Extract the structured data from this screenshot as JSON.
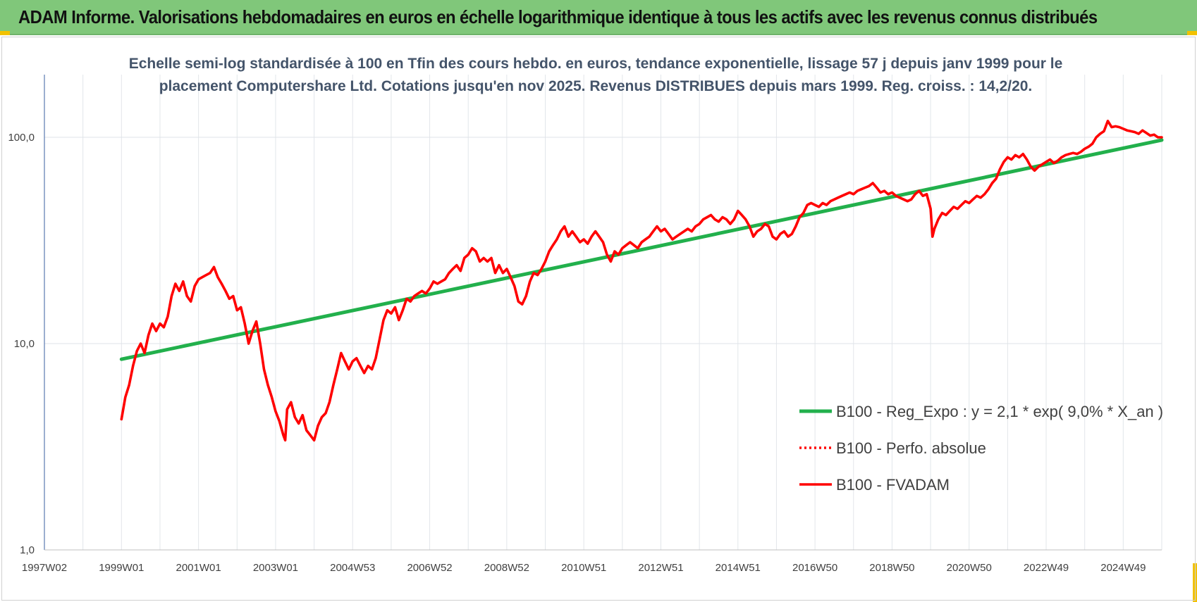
{
  "banner": {
    "title": "ADAM Informe. Valorisations hebdomadaires en euros en échelle logarithmique identique à tous les actifs avec les revenus connus distribués",
    "color": "#80c77a"
  },
  "chart_data": {
    "type": "line",
    "title_lines": [
      "Echelle semi-log standardisée à 100 en Tfin des cours hebdo. en euros, tendance exponentielle, lissage 57 j depuis janv 1999 pour le",
      "placement Computershare Ltd. Cotations jusqu'en nov 2025. Revenus DISTRIBUES depuis mars 1999. Reg. croiss. : 14,2/20."
    ],
    "y_scale": "log",
    "ylim": [
      1,
      200
    ],
    "y_ticks": [
      {
        "value": 100,
        "label": "100,0"
      },
      {
        "value": 10,
        "label": "10,0"
      },
      {
        "value": 1,
        "label": "1,0"
      }
    ],
    "x_unit": "year",
    "xlim": [
      1997.0,
      2026.0
    ],
    "x_ticks": [
      {
        "value": 1997.0,
        "label": "1997W02"
      },
      {
        "value": 1999.0,
        "label": "1999W01"
      },
      {
        "value": 2001.0,
        "label": "2001W01"
      },
      {
        "value": 2003.0,
        "label": "2003W01"
      },
      {
        "value": 2005.0,
        "label": "2004W53"
      },
      {
        "value": 2007.0,
        "label": "2006W52"
      },
      {
        "value": 2009.0,
        "label": "2008W52"
      },
      {
        "value": 2011.0,
        "label": "2010W51"
      },
      {
        "value": 2013.0,
        "label": "2012W51"
      },
      {
        "value": 2015.0,
        "label": "2014W51"
      },
      {
        "value": 2017.0,
        "label": "2016W50"
      },
      {
        "value": 2019.0,
        "label": "2018W50"
      },
      {
        "value": 2021.0,
        "label": "2020W50"
      },
      {
        "value": 2023.0,
        "label": "2022W49"
      },
      {
        "value": 2025.0,
        "label": "2024W49"
      }
    ],
    "grid": true,
    "legend_position": "right",
    "series": [
      {
        "name": "B100 - Reg_Expo : y = 2,1 * exp( 9,0% *  X_an )",
        "color": "#22b04c",
        "style": "solid",
        "points": [
          [
            1999.0,
            8.4
          ],
          [
            2026.0,
            97
          ]
        ]
      },
      {
        "name": "B100 - Perfo. absolue",
        "color": "#ff0000",
        "style": "dotted",
        "points": []
      },
      {
        "name": "B100 - FVADAM",
        "color": "#ff0000",
        "style": "solid",
        "points": [
          [
            1999.0,
            4.3
          ],
          [
            1999.1,
            5.5
          ],
          [
            1999.2,
            6.3
          ],
          [
            1999.3,
            7.8
          ],
          [
            1999.4,
            9.2
          ],
          [
            1999.5,
            10.0
          ],
          [
            1999.6,
            9.0
          ],
          [
            1999.7,
            11.0
          ],
          [
            1999.8,
            12.5
          ],
          [
            1999.9,
            11.5
          ],
          [
            2000.0,
            12.5
          ],
          [
            2000.1,
            12.0
          ],
          [
            2000.2,
            13.5
          ],
          [
            2000.3,
            17.0
          ],
          [
            2000.4,
            19.5
          ],
          [
            2000.5,
            18.0
          ],
          [
            2000.6,
            20.0
          ],
          [
            2000.7,
            17.0
          ],
          [
            2000.8,
            16.0
          ],
          [
            2000.9,
            19.0
          ],
          [
            2001.0,
            20.5
          ],
          [
            2001.1,
            21.0
          ],
          [
            2001.2,
            21.5
          ],
          [
            2001.3,
            22.0
          ],
          [
            2001.4,
            23.5
          ],
          [
            2001.5,
            21.0
          ],
          [
            2001.6,
            19.5
          ],
          [
            2001.7,
            18.0
          ],
          [
            2001.8,
            16.5
          ],
          [
            2001.9,
            17.0
          ],
          [
            2002.0,
            14.5
          ],
          [
            2002.1,
            15.0
          ],
          [
            2002.2,
            12.5
          ],
          [
            2002.3,
            10.0
          ],
          [
            2002.4,
            11.5
          ],
          [
            2002.5,
            12.8
          ],
          [
            2002.6,
            10.0
          ],
          [
            2002.7,
            7.5
          ],
          [
            2002.8,
            6.3
          ],
          [
            2002.9,
            5.5
          ],
          [
            2003.0,
            4.7
          ],
          [
            2003.1,
            4.2
          ],
          [
            2003.2,
            3.6
          ],
          [
            2003.25,
            3.4
          ],
          [
            2003.3,
            4.8
          ],
          [
            2003.4,
            5.2
          ],
          [
            2003.5,
            4.4
          ],
          [
            2003.6,
            4.1
          ],
          [
            2003.7,
            4.5
          ],
          [
            2003.8,
            3.8
          ],
          [
            2003.9,
            3.6
          ],
          [
            2004.0,
            3.4
          ],
          [
            2004.1,
            4.0
          ],
          [
            2004.2,
            4.4
          ],
          [
            2004.3,
            4.6
          ],
          [
            2004.4,
            5.2
          ],
          [
            2004.5,
            6.3
          ],
          [
            2004.6,
            7.5
          ],
          [
            2004.7,
            9.0
          ],
          [
            2004.8,
            8.2
          ],
          [
            2004.9,
            7.5
          ],
          [
            2005.0,
            8.2
          ],
          [
            2005.1,
            8.5
          ],
          [
            2005.2,
            7.8
          ],
          [
            2005.3,
            7.2
          ],
          [
            2005.4,
            7.8
          ],
          [
            2005.5,
            7.5
          ],
          [
            2005.6,
            8.5
          ],
          [
            2005.7,
            10.5
          ],
          [
            2005.8,
            13.0
          ],
          [
            2005.9,
            14.5
          ],
          [
            2006.0,
            14.0
          ],
          [
            2006.1,
            15.0
          ],
          [
            2006.2,
            13.0
          ],
          [
            2006.3,
            14.5
          ],
          [
            2006.4,
            16.5
          ],
          [
            2006.5,
            16.0
          ],
          [
            2006.6,
            17.0
          ],
          [
            2006.7,
            17.5
          ],
          [
            2006.8,
            18.0
          ],
          [
            2006.9,
            17.5
          ],
          [
            2007.0,
            18.5
          ],
          [
            2007.1,
            20.0
          ],
          [
            2007.2,
            19.5
          ],
          [
            2007.3,
            20.0
          ],
          [
            2007.4,
            20.5
          ],
          [
            2007.5,
            22.0
          ],
          [
            2007.6,
            23.0
          ],
          [
            2007.7,
            24.0
          ],
          [
            2007.8,
            22.5
          ],
          [
            2007.9,
            26.0
          ],
          [
            2008.0,
            27.0
          ],
          [
            2008.1,
            29.0
          ],
          [
            2008.2,
            28.0
          ],
          [
            2008.3,
            25.0
          ],
          [
            2008.4,
            26.0
          ],
          [
            2008.5,
            25.0
          ],
          [
            2008.6,
            26.0
          ],
          [
            2008.7,
            22.0
          ],
          [
            2008.8,
            24.0
          ],
          [
            2008.9,
            22.0
          ],
          [
            2009.0,
            23.0
          ],
          [
            2009.1,
            21.0
          ],
          [
            2009.2,
            19.0
          ],
          [
            2009.3,
            16.0
          ],
          [
            2009.4,
            15.5
          ],
          [
            2009.5,
            17.0
          ],
          [
            2009.6,
            20.0
          ],
          [
            2009.7,
            22.0
          ],
          [
            2009.8,
            21.5
          ],
          [
            2009.9,
            23.0
          ],
          [
            2010.0,
            25.0
          ],
          [
            2010.1,
            28.0
          ],
          [
            2010.2,
            30.0
          ],
          [
            2010.3,
            32.0
          ],
          [
            2010.4,
            35.0
          ],
          [
            2010.5,
            37.0
          ],
          [
            2010.6,
            33.0
          ],
          [
            2010.7,
            35.0
          ],
          [
            2010.8,
            33.0
          ],
          [
            2010.9,
            31.0
          ],
          [
            2011.0,
            32.0
          ],
          [
            2011.1,
            30.5
          ],
          [
            2011.2,
            33.0
          ],
          [
            2011.3,
            35.0
          ],
          [
            2011.4,
            33.0
          ],
          [
            2011.5,
            31.0
          ],
          [
            2011.6,
            27.0
          ],
          [
            2011.7,
            25.0
          ],
          [
            2011.8,
            28.0
          ],
          [
            2011.9,
            27.0
          ],
          [
            2012.0,
            29.0
          ],
          [
            2012.1,
            30.0
          ],
          [
            2012.2,
            31.0
          ],
          [
            2012.3,
            30.0
          ],
          [
            2012.4,
            29.0
          ],
          [
            2012.5,
            31.0
          ],
          [
            2012.6,
            32.0
          ],
          [
            2012.7,
            33.0
          ],
          [
            2012.8,
            35.0
          ],
          [
            2012.9,
            37.0
          ],
          [
            2013.0,
            35.0
          ],
          [
            2013.1,
            36.0
          ],
          [
            2013.2,
            34.0
          ],
          [
            2013.3,
            32.0
          ],
          [
            2013.4,
            33.0
          ],
          [
            2013.5,
            34.0
          ],
          [
            2013.6,
            35.0
          ],
          [
            2013.7,
            36.0
          ],
          [
            2013.8,
            35.0
          ],
          [
            2013.9,
            37.0
          ],
          [
            2014.0,
            38.0
          ],
          [
            2014.1,
            40.0
          ],
          [
            2014.2,
            41.0
          ],
          [
            2014.3,
            42.0
          ],
          [
            2014.4,
            40.0
          ],
          [
            2014.5,
            39.0
          ],
          [
            2014.6,
            41.0
          ],
          [
            2014.7,
            40.0
          ],
          [
            2014.8,
            38.0
          ],
          [
            2014.9,
            40.0
          ],
          [
            2015.0,
            44.0
          ],
          [
            2015.1,
            42.0
          ],
          [
            2015.2,
            40.0
          ],
          [
            2015.3,
            37.0
          ],
          [
            2015.4,
            33.0
          ],
          [
            2015.5,
            35.0
          ],
          [
            2015.6,
            36.0
          ],
          [
            2015.7,
            38.0
          ],
          [
            2015.8,
            37.0
          ],
          [
            2015.9,
            33.0
          ],
          [
            2016.0,
            32.0
          ],
          [
            2016.1,
            34.0
          ],
          [
            2016.2,
            35.0
          ],
          [
            2016.3,
            33.0
          ],
          [
            2016.4,
            34.0
          ],
          [
            2016.5,
            37.0
          ],
          [
            2016.6,
            41.0
          ],
          [
            2016.7,
            43.0
          ],
          [
            2016.8,
            47.0
          ],
          [
            2016.9,
            48.0
          ],
          [
            2017.0,
            47.0
          ],
          [
            2017.1,
            46.0
          ],
          [
            2017.2,
            48.0
          ],
          [
            2017.3,
            47.0
          ],
          [
            2017.4,
            49.0
          ],
          [
            2017.5,
            50.0
          ],
          [
            2017.6,
            51.0
          ],
          [
            2017.7,
            52.0
          ],
          [
            2017.8,
            53.0
          ],
          [
            2017.9,
            54.0
          ],
          [
            2018.0,
            53.0
          ],
          [
            2018.1,
            55.0
          ],
          [
            2018.2,
            56.0
          ],
          [
            2018.3,
            57.0
          ],
          [
            2018.4,
            58.0
          ],
          [
            2018.5,
            60.0
          ],
          [
            2018.6,
            57.0
          ],
          [
            2018.7,
            54.0
          ],
          [
            2018.8,
            55.0
          ],
          [
            2018.9,
            53.0
          ],
          [
            2019.0,
            54.0
          ],
          [
            2019.1,
            52.0
          ],
          [
            2019.2,
            51.0
          ],
          [
            2019.3,
            50.0
          ],
          [
            2019.4,
            49.0
          ],
          [
            2019.5,
            50.0
          ],
          [
            2019.6,
            53.0
          ],
          [
            2019.7,
            55.0
          ],
          [
            2019.8,
            52.0
          ],
          [
            2019.9,
            53.0
          ],
          [
            2020.0,
            45.0
          ],
          [
            2020.05,
            33.0
          ],
          [
            2020.1,
            36.0
          ],
          [
            2020.2,
            40.0
          ],
          [
            2020.3,
            43.0
          ],
          [
            2020.4,
            42.0
          ],
          [
            2020.5,
            44.0
          ],
          [
            2020.6,
            46.0
          ],
          [
            2020.7,
            45.0
          ],
          [
            2020.8,
            47.0
          ],
          [
            2020.9,
            49.0
          ],
          [
            2021.0,
            48.0
          ],
          [
            2021.1,
            50.0
          ],
          [
            2021.2,
            52.0
          ],
          [
            2021.3,
            51.0
          ],
          [
            2021.4,
            53.0
          ],
          [
            2021.5,
            56.0
          ],
          [
            2021.6,
            60.0
          ],
          [
            2021.7,
            63.0
          ],
          [
            2021.8,
            70.0
          ],
          [
            2021.9,
            76.0
          ],
          [
            2022.0,
            80.0
          ],
          [
            2022.1,
            78.0
          ],
          [
            2022.2,
            82.0
          ],
          [
            2022.3,
            80.0
          ],
          [
            2022.4,
            83.0
          ],
          [
            2022.5,
            78.0
          ],
          [
            2022.6,
            72.0
          ],
          [
            2022.7,
            69.0
          ],
          [
            2022.8,
            72.0
          ],
          [
            2022.9,
            74.0
          ],
          [
            2023.0,
            76.0
          ],
          [
            2023.1,
            78.0
          ],
          [
            2023.2,
            75.0
          ],
          [
            2023.3,
            77.0
          ],
          [
            2023.4,
            80.0
          ],
          [
            2023.5,
            82.0
          ],
          [
            2023.6,
            83.0
          ],
          [
            2023.7,
            84.0
          ],
          [
            2023.8,
            83.0
          ],
          [
            2023.9,
            85.0
          ],
          [
            2024.0,
            88.0
          ],
          [
            2024.1,
            90.0
          ],
          [
            2024.2,
            93.0
          ],
          [
            2024.3,
            100.0
          ],
          [
            2024.4,
            104.0
          ],
          [
            2024.5,
            107.0
          ],
          [
            2024.6,
            120.0
          ],
          [
            2024.7,
            112.0
          ],
          [
            2024.8,
            113.0
          ],
          [
            2024.9,
            112.0
          ],
          [
            2025.0,
            110.0
          ],
          [
            2025.1,
            108.0
          ],
          [
            2025.2,
            107.0
          ],
          [
            2025.3,
            106.0
          ],
          [
            2025.4,
            104.0
          ],
          [
            2025.5,
            108.0
          ],
          [
            2025.6,
            105.0
          ],
          [
            2025.7,
            102.0
          ],
          [
            2025.8,
            103.0
          ],
          [
            2025.9,
            100.0
          ],
          [
            2026.0,
            100.0
          ]
        ]
      }
    ]
  }
}
